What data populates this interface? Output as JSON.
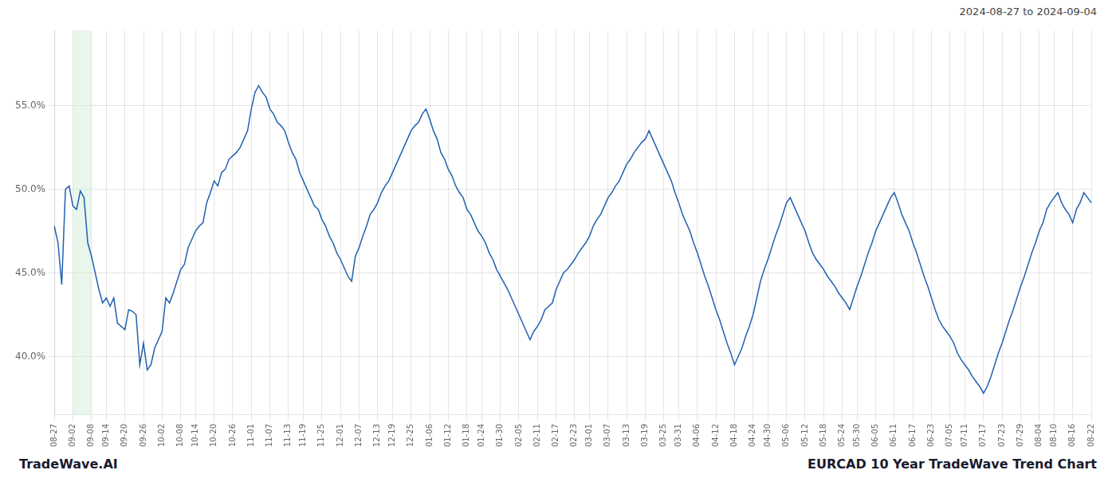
{
  "chart_data": {
    "type": "line",
    "title": "EURCAD 10 Year TradeWave Trend Chart",
    "subtitle": "2024-08-27 to 2024-09-04",
    "annotations": [
      "TradeWave.AI"
    ],
    "color": "#2060b0",
    "grid": true,
    "ylim": [
      0.365,
      0.595
    ],
    "yticks": [
      {
        "value": 0.4,
        "label": "40.0%"
      },
      {
        "value": 0.45,
        "label": "45.0%"
      },
      {
        "value": 0.5,
        "label": "50.0%"
      },
      {
        "value": 0.55,
        "label": "55.0%"
      }
    ],
    "shaded_range": {
      "start": "09-02",
      "end": "09-08",
      "color": "#d4edda"
    },
    "categories": [
      "08-27",
      null,
      null,
      null,
      null,
      "09-02",
      null,
      null,
      null,
      null,
      "09-08",
      null,
      null,
      null,
      "09-14",
      null,
      null,
      null,
      null,
      "09-20",
      null,
      null,
      null,
      null,
      "09-26",
      null,
      null,
      null,
      null,
      "10-02",
      null,
      null,
      null,
      null,
      "10-08",
      null,
      null,
      null,
      "10-14",
      null,
      null,
      null,
      null,
      "10-20",
      null,
      null,
      null,
      null,
      "10-26",
      null,
      null,
      null,
      null,
      "11-01",
      null,
      null,
      null,
      null,
      "11-07",
      null,
      null,
      null,
      null,
      "11-13",
      null,
      null,
      null,
      "11-19",
      null,
      null,
      null,
      null,
      "11-25",
      null,
      null,
      null,
      null,
      "12-01",
      null,
      null,
      null,
      null,
      "12-07",
      null,
      null,
      null,
      null,
      "12-13",
      null,
      null,
      null,
      "12-19",
      null,
      null,
      null,
      null,
      "12-25",
      null,
      null,
      null,
      null,
      "01-06",
      null,
      null,
      null,
      null,
      "01-12",
      null,
      null,
      null,
      null,
      "01-18",
      null,
      null,
      null,
      "01-24",
      null,
      null,
      null,
      null,
      "01-30",
      null,
      null,
      null,
      null,
      "02-05",
      null,
      null,
      null,
      null,
      "02-11",
      null,
      null,
      null,
      null,
      "02-17",
      null,
      null,
      null,
      null,
      "02-23",
      null,
      null,
      null,
      "03-01",
      null,
      null,
      null,
      null,
      "03-07",
      null,
      null,
      null,
      null,
      "03-13",
      null,
      null,
      null,
      null,
      "03-19",
      null,
      null,
      null,
      null,
      "03-25",
      null,
      null,
      null,
      "03-31",
      null,
      null,
      null,
      null,
      "04-06",
      null,
      null,
      null,
      null,
      "04-12",
      null,
      null,
      null,
      null,
      "04-18",
      null,
      null,
      null,
      null,
      "04-24",
      null,
      null,
      null,
      "04-30",
      null,
      null,
      null,
      null,
      "05-06",
      null,
      null,
      null,
      null,
      "05-12",
      null,
      null,
      null,
      null,
      "05-18",
      null,
      null,
      null,
      null,
      "05-24",
      null,
      null,
      null,
      "05-30",
      null,
      null,
      null,
      null,
      "06-05",
      null,
      null,
      null,
      null,
      "06-11",
      null,
      null,
      null,
      null,
      "06-17",
      null,
      null,
      null,
      null,
      "06-23",
      null,
      null,
      null,
      null,
      "07-05",
      null,
      null,
      null,
      "07-11",
      null,
      null,
      null,
      null,
      "07-17",
      null,
      null,
      null,
      null,
      "07-23",
      null,
      null,
      null,
      null,
      "07-29",
      null,
      null,
      null,
      null,
      "08-04",
      null,
      null,
      null,
      "08-10",
      null,
      null,
      null,
      null,
      "08-16",
      null,
      null,
      null,
      null,
      "08-22"
    ],
    "values": [
      0.478,
      0.468,
      0.443,
      0.5,
      0.502,
      0.49,
      0.488,
      0.499,
      0.495,
      0.468,
      0.46,
      0.45,
      0.44,
      0.432,
      0.435,
      0.43,
      0.435,
      0.42,
      0.418,
      0.416,
      0.428,
      0.427,
      0.425,
      0.395,
      0.408,
      0.392,
      0.395,
      0.405,
      0.41,
      0.415,
      0.435,
      0.432,
      0.438,
      0.445,
      0.452,
      0.455,
      0.465,
      0.47,
      0.475,
      0.478,
      0.48,
      0.492,
      0.498,
      0.505,
      0.502,
      0.51,
      0.512,
      0.518,
      0.52,
      0.522,
      0.525,
      0.53,
      0.535,
      0.548,
      0.558,
      0.562,
      0.558,
      0.555,
      0.548,
      0.545,
      0.54,
      0.538,
      0.535,
      0.528,
      0.522,
      0.518,
      0.51,
      0.505,
      0.5,
      0.495,
      0.49,
      0.488,
      0.482,
      0.478,
      0.472,
      0.468,
      0.462,
      0.458,
      0.453,
      0.448,
      0.445,
      0.46,
      0.465,
      0.472,
      0.478,
      0.485,
      0.488,
      0.492,
      0.498,
      0.502,
      0.505,
      0.51,
      0.515,
      0.52,
      0.525,
      0.53,
      0.535,
      0.538,
      0.54,
      0.545,
      0.548,
      0.542,
      0.535,
      0.53,
      0.522,
      0.518,
      0.512,
      0.508,
      0.502,
      0.498,
      0.495,
      0.488,
      0.485,
      0.48,
      0.475,
      0.472,
      0.468,
      0.462,
      0.458,
      0.452,
      0.448,
      0.444,
      0.44,
      0.435,
      0.43,
      0.425,
      0.42,
      0.415,
      0.41,
      0.415,
      0.418,
      0.422,
      0.428,
      0.43,
      0.432,
      0.44,
      0.445,
      0.45,
      0.452,
      0.455,
      0.458,
      0.462,
      0.465,
      0.468,
      0.472,
      0.478,
      0.482,
      0.485,
      0.49,
      0.495,
      0.498,
      0.502,
      0.505,
      0.51,
      0.515,
      0.518,
      0.522,
      0.525,
      0.528,
      0.53,
      0.535,
      0.53,
      0.525,
      0.52,
      0.515,
      0.51,
      0.505,
      0.498,
      0.492,
      0.485,
      0.48,
      0.475,
      0.468,
      0.462,
      0.455,
      0.448,
      0.442,
      0.435,
      0.428,
      0.422,
      0.415,
      0.408,
      0.402,
      0.395,
      0.4,
      0.405,
      0.412,
      0.418,
      0.425,
      0.435,
      0.445,
      0.452,
      0.458,
      0.465,
      0.472,
      0.478,
      0.485,
      0.492,
      0.495,
      0.49,
      0.485,
      0.48,
      0.475,
      0.468,
      0.462,
      0.458,
      0.455,
      0.452,
      0.448,
      0.445,
      0.442,
      0.438,
      0.435,
      0.432,
      0.428,
      0.435,
      0.442,
      0.448,
      0.455,
      0.462,
      0.468,
      0.475,
      0.48,
      0.485,
      0.49,
      0.495,
      0.498,
      0.492,
      0.485,
      0.48,
      0.475,
      0.468,
      0.462,
      0.455,
      0.448,
      0.442,
      0.435,
      0.428,
      0.422,
      0.418,
      0.415,
      0.412,
      0.408,
      0.402,
      0.398,
      0.395,
      0.392,
      0.388,
      0.385,
      0.382,
      0.378,
      0.382,
      0.388,
      0.395,
      0.402,
      0.408,
      0.415,
      0.422,
      0.428,
      0.435,
      0.442,
      0.448,
      0.455,
      0.462,
      0.468,
      0.475,
      0.48,
      0.488,
      0.492,
      0.495,
      0.498,
      0.492,
      0.488,
      0.485,
      0.48,
      0.488,
      0.492,
      0.498,
      0.495,
      0.492
    ]
  }
}
